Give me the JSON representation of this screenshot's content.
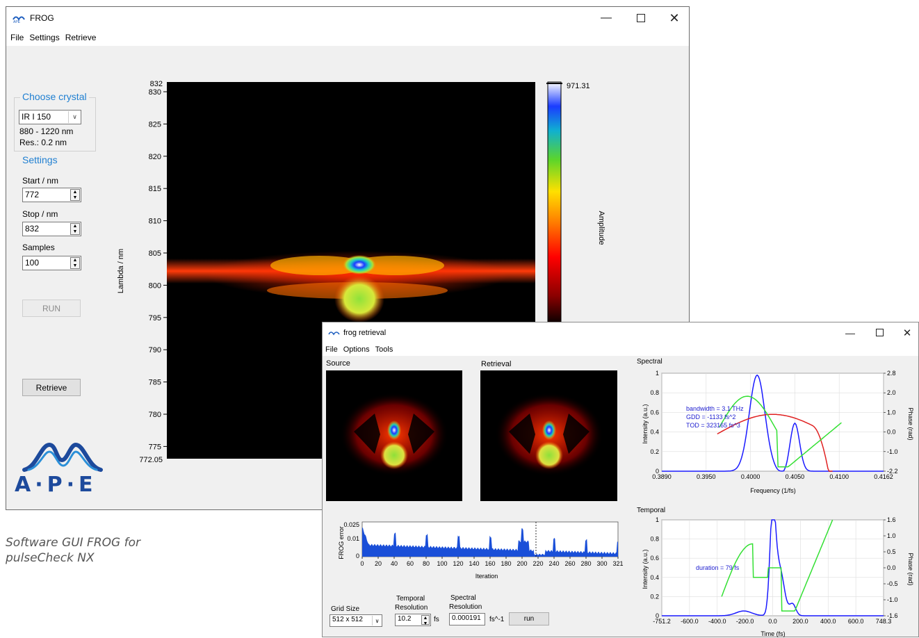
{
  "main_window": {
    "title": "FROG",
    "menu": [
      "File",
      "Settings",
      "Retrieve"
    ],
    "crystal_group": "Choose crystal",
    "crystal_value": "IR I 150",
    "crystal_range": "880 - 1220 nm",
    "crystal_res": "Res.: 0.2 nm",
    "settings_label": "Settings",
    "start_label": "Start / nm",
    "start_value": "772",
    "stop_label": "Stop / nm",
    "stop_value": "832",
    "samples_label": "Samples",
    "samples_value": "100",
    "run_button": "RUN",
    "retrieve_button": "Retrieve",
    "logo_text": "A·P·E",
    "plot": {
      "ylabel": "Lambda / nm",
      "ytick_top": "832",
      "ytick_bottom": "772.05",
      "yticks": [
        "830",
        "825",
        "820",
        "815",
        "810",
        "805",
        "800",
        "795",
        "790",
        "785",
        "780",
        "775"
      ],
      "colorbar_max": "971.31",
      "colorbar_label": "Amplitude"
    }
  },
  "retrieval_window": {
    "title": "frog retrieval",
    "menu": [
      "File",
      "Options",
      "Tools"
    ],
    "source_label": "Source",
    "retrieval_label": "Retrieval",
    "error_plot": {
      "ylabel": "FROG error",
      "xlabel": "Iteration",
      "yticks": [
        "0.025",
        "0.01",
        "0"
      ],
      "xticks": [
        "0",
        "20",
        "40",
        "60",
        "80",
        "100",
        "120",
        "140",
        "160",
        "180",
        "200",
        "220",
        "240",
        "260",
        "280",
        "300",
        "321"
      ]
    },
    "grid_size_label": "Grid Size",
    "grid_size_value": "512 x 512",
    "temporal_res_label_1": "Temporal",
    "temporal_res_label_2": "Resolution",
    "temporal_res_value": "10.2",
    "temporal_res_unit": "fs",
    "spectral_res_label_1": "Spectral",
    "spectral_res_label_2": "Resolution",
    "spectral_res_value": "0.000191",
    "spectral_res_unit": "fs^-1",
    "run_button": "run",
    "spectral_plot": {
      "title": "Spectral",
      "ylabel": "Intensity (a.u.)",
      "y2label": "Phase (rad)",
      "xlabel": "Frequency (1/fs)",
      "xticks": [
        "0.3890",
        "0.3950",
        "0.4000",
        "0.4050",
        "0.4100",
        "0.4162"
      ],
      "yticks": [
        "1",
        "0.8",
        "0.6",
        "0.4",
        "0.2",
        "0"
      ],
      "y2ticks": [
        "2.8",
        "2.0",
        "1.0",
        "0.0",
        "-1.0",
        "-2.2"
      ],
      "annotations": [
        "bandwidth = 3.1 THz",
        "GDD = -1133 fs^2",
        "TOD = 323165 fs^3"
      ]
    },
    "temporal_plot": {
      "title": "Temporal",
      "ylabel": "Intensity (a.u.)",
      "y2label": "Phase (rad)",
      "xlabel": "Time (fs)",
      "xticks": [
        "-751.2",
        "-600.0",
        "-400.0",
        "-200.0",
        "0.0",
        "200.0",
        "400.0",
        "600.0",
        "748.3"
      ],
      "yticks": [
        "1",
        "0.8",
        "0.6",
        "0.4",
        "0.2",
        "0"
      ],
      "y2ticks": [
        "1.6",
        "1.0",
        "0.5",
        "0.0",
        "-0.5",
        "-1.0",
        "-1.6"
      ],
      "annotation": "duration = 79 fs"
    }
  },
  "caption_line1": "Software GUI FROG for",
  "caption_line2": "pulseCheck NX",
  "colors": {
    "accent_blue": "#1f7fd1",
    "trace_blue": "#1a1aff",
    "trace_green": "#33e033",
    "trace_red": "#e02020"
  }
}
